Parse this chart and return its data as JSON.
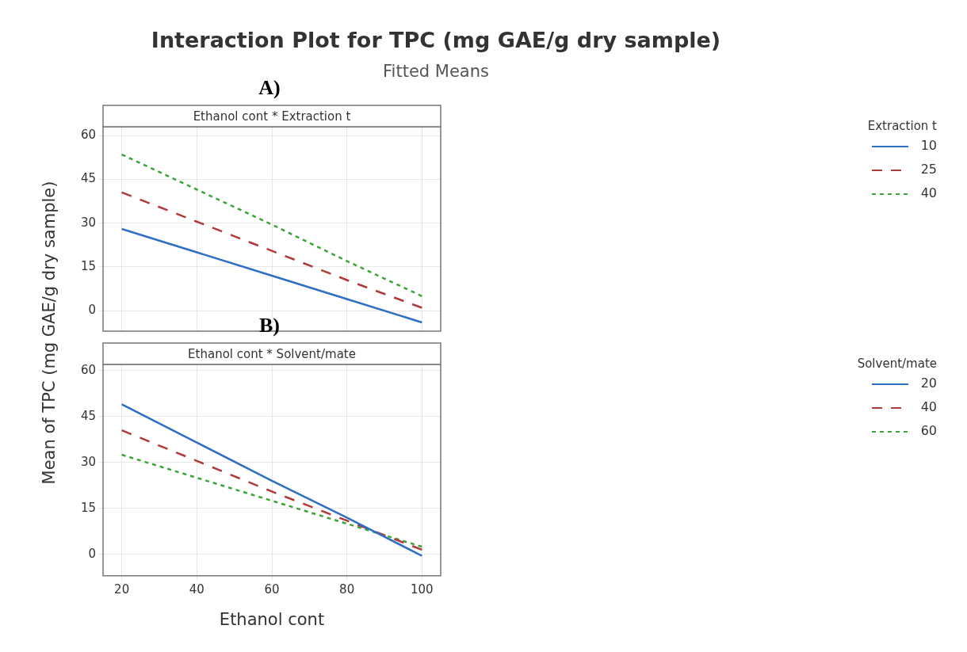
{
  "chart_data": [
    {
      "type": "line",
      "title": "Interaction Plot for TPC (mg GAE/g dry sample)",
      "subtitle": "Fitted Means",
      "ylabel": "Mean of TPC (mg GAE/g dry sample)",
      "annotations": [
        "A)",
        "Ethanol cont * Extraction t"
      ],
      "legend_title": "Extraction t",
      "legend": "right",
      "grid": true,
      "tick_labels": "y",
      "marker": "none",
      "xlim": [
        15,
        105
      ],
      "xticks": [
        20,
        40,
        60,
        80,
        100
      ],
      "ylim": [
        -7,
        63
      ],
      "yticks": [
        0,
        15,
        30,
        45,
        60
      ],
      "x": [
        20,
        40,
        60,
        80,
        100
      ],
      "series": [
        {
          "name": "10",
          "color": "#2f6fc4",
          "line_style": "solid",
          "values": [
            28,
            20,
            12,
            4,
            -4
          ]
        },
        {
          "name": "25",
          "color": "#b03a3a",
          "line_style": "dashed",
          "values": [
            40.5,
            30.5,
            20.5,
            10.5,
            1
          ]
        },
        {
          "name": "40",
          "color": "#3aa43a",
          "line_style": "dotted",
          "values": [
            53.5,
            41.5,
            29.5,
            17,
            5
          ]
        }
      ]
    },
    {
      "type": "line",
      "xlabel": "Ethanol cont",
      "annotations": [
        "B)",
        "Ethanol cont * Solvent/mate"
      ],
      "legend_title": "Solvent/mate",
      "legend": "right",
      "grid": true,
      "marker": "none",
      "xlim": [
        15,
        105
      ],
      "xticks": [
        20,
        40,
        60,
        80,
        100
      ],
      "ylim": [
        -7,
        62
      ],
      "yticks": [
        0,
        15,
        30,
        45,
        60
      ],
      "x": [
        20,
        40,
        60,
        80,
        100
      ],
      "series": [
        {
          "name": "20",
          "color": "#2f6fc4",
          "line_style": "solid",
          "values": [
            49,
            36.5,
            24,
            12,
            -0.5
          ]
        },
        {
          "name": "40",
          "color": "#b03a3a",
          "line_style": "dashed",
          "values": [
            40.5,
            30.5,
            20.5,
            11,
            1.5
          ]
        },
        {
          "name": "60",
          "color": "#3aa43a",
          "line_style": "dotted",
          "values": [
            32.5,
            25,
            17.5,
            10,
            2.5
          ]
        }
      ]
    }
  ]
}
